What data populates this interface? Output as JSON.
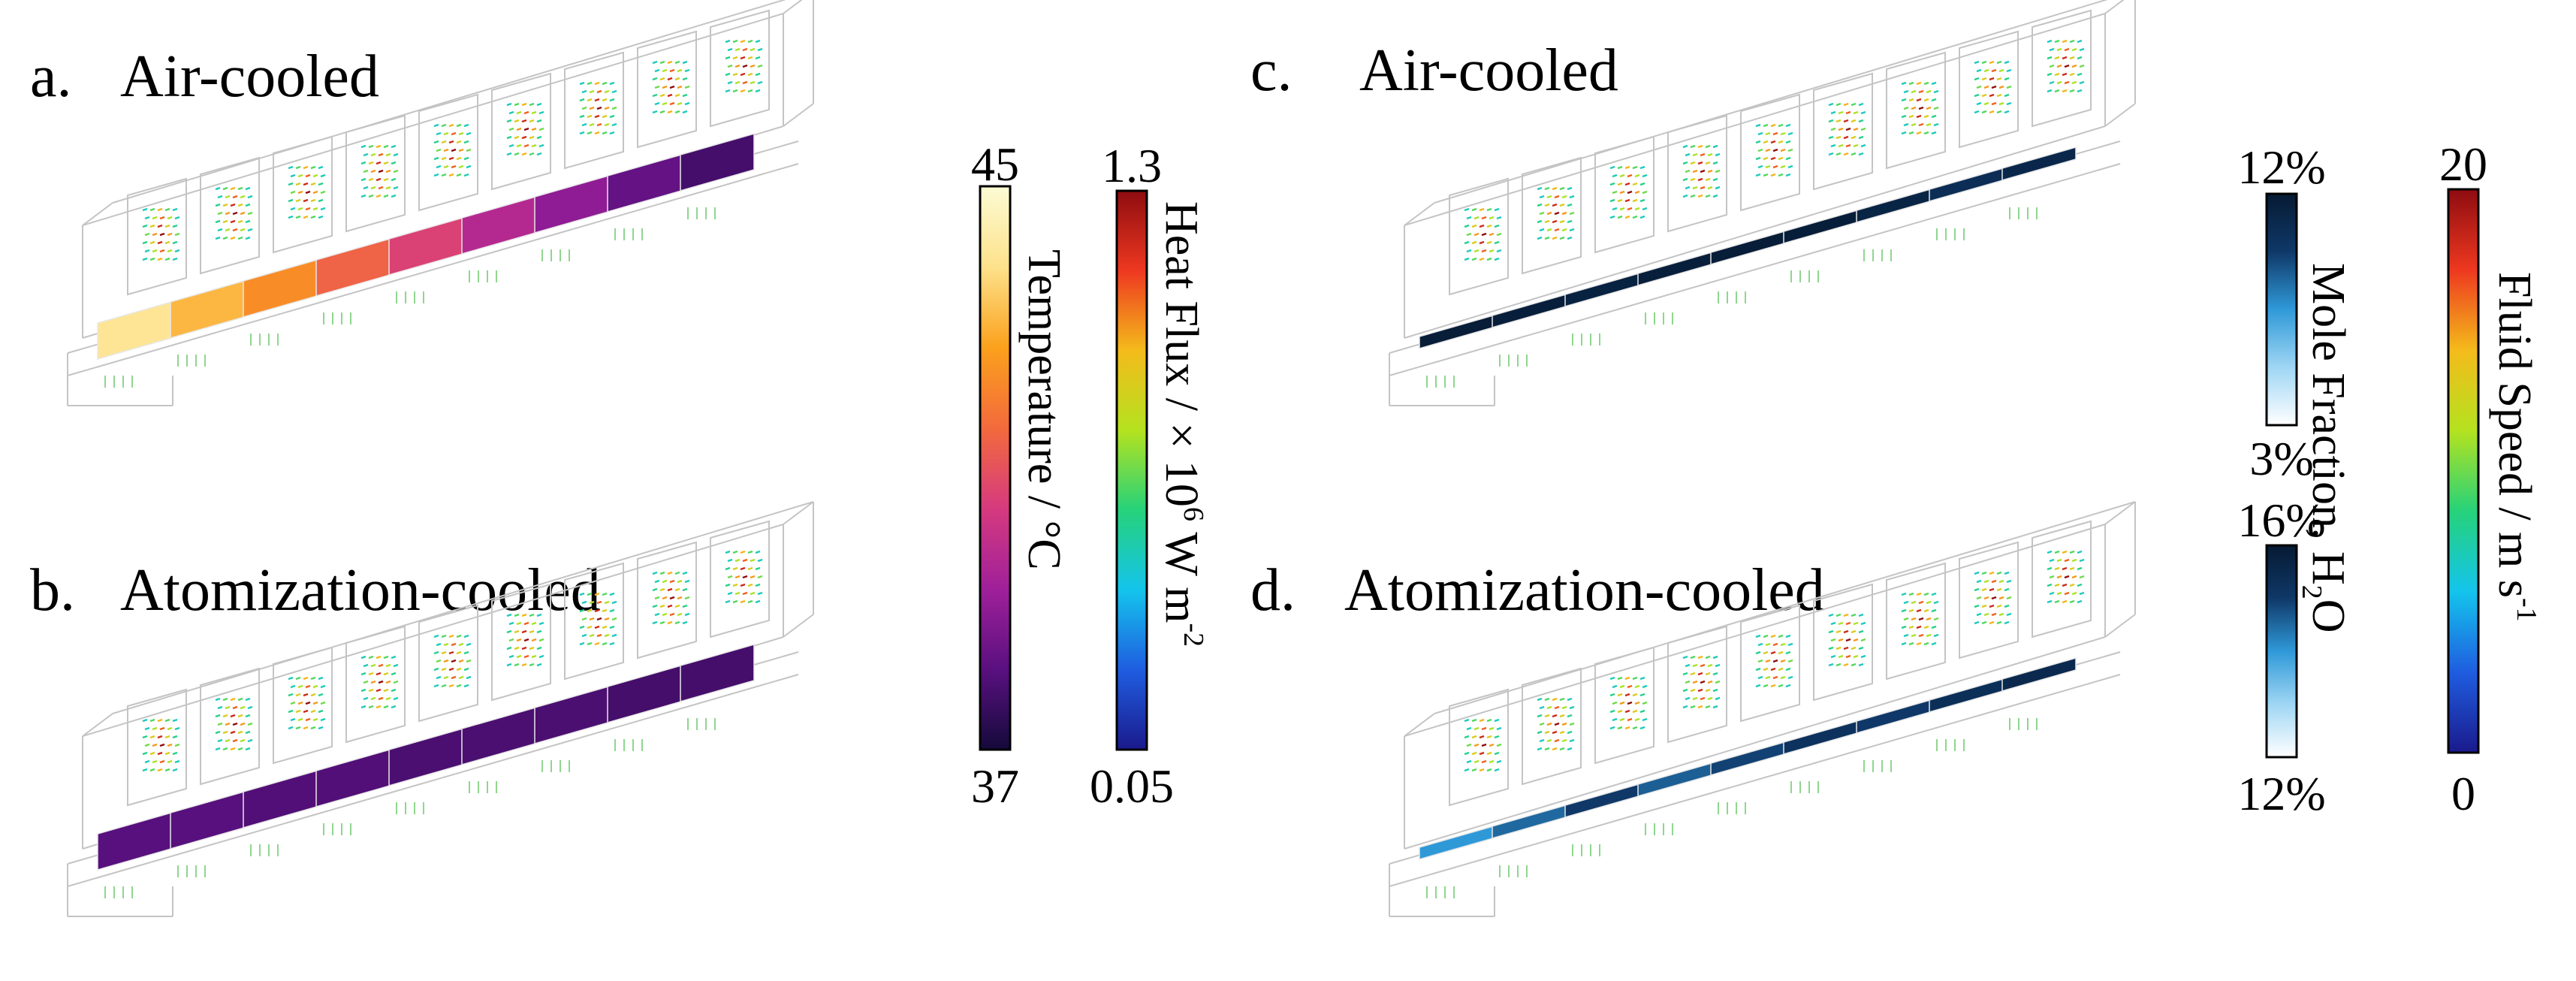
{
  "panels": {
    "a": {
      "letter": "a.",
      "title": "Air-cooled",
      "field": "temperature",
      "values": [
        44.0,
        43.1,
        42.3,
        41.4,
        40.6,
        39.7,
        39.0,
        38.3,
        37.8
      ]
    },
    "b": {
      "letter": "b.",
      "title": "Atomization-cooled",
      "field": "temperature",
      "values": [
        38.1,
        38.1,
        38.0,
        38.0,
        37.9,
        37.9,
        37.9,
        37.8,
        37.8
      ]
    },
    "c": {
      "letter": "c.",
      "title": "Air-cooled",
      "field": "mole_fraction",
      "values": [
        11.8,
        11.6,
        11.4,
        11.6,
        11.8,
        11.7,
        11.2,
        10.5,
        11.0
      ]
    },
    "d": {
      "letter": "d.",
      "title": "Atomization-cooled",
      "field": "mole_fraction",
      "values": [
        14.0,
        14.5,
        15.0,
        14.6,
        14.9,
        15.2,
        15.0,
        15.3,
        15.5
      ]
    }
  },
  "colorbars": {
    "temperature": {
      "max": "45",
      "min": "37",
      "vmax": 45,
      "vmin": 37,
      "label": "Temperature / °C",
      "stops": [
        "#140a3a",
        "#5a1080",
        "#a0209a",
        "#d63a7e",
        "#f36a3c",
        "#fba11c",
        "#fde28c",
        "#fcfbd4"
      ]
    },
    "heat_flux": {
      "max": "1.3",
      "min": "0.05",
      "label_main": "Heat Flux / × 10",
      "label_sup": "6",
      "label_unit": " W m",
      "label_exp": "-2",
      "stops": [
        "#1a1a8c",
        "#1f5de0",
        "#14c4ec",
        "#26d27a",
        "#b4e21f",
        "#f4bb1b",
        "#ee3820",
        "#8e0c10"
      ]
    },
    "mole_fraction_c": {
      "max": "12%",
      "min": "3%",
      "vmax": 12,
      "vmin": 3,
      "stops": [
        "#ffffff",
        "#9fd6f4",
        "#2f99d8",
        "#0f3868",
        "#061a33"
      ]
    },
    "mole_fraction_d": {
      "max": "16%",
      "min": "12%",
      "vmax": 16,
      "vmin": 12,
      "stops": [
        "#ffffff",
        "#9fd6f4",
        "#2f99d8",
        "#0f3868",
        "#061a33"
      ]
    },
    "mole_fraction_label": {
      "main": "Mole Fraction, H",
      "sub": "2",
      "tail": "O"
    },
    "fluid_speed": {
      "max": "20",
      "min": "0",
      "label_main": "Fluid Speed / m s",
      "label_exp": "-1",
      "stops": [
        "#1a1a8c",
        "#1f5de0",
        "#14c4ec",
        "#26d27a",
        "#b4e21f",
        "#f4bb1b",
        "#ee3820",
        "#8e0c10"
      ]
    }
  }
}
